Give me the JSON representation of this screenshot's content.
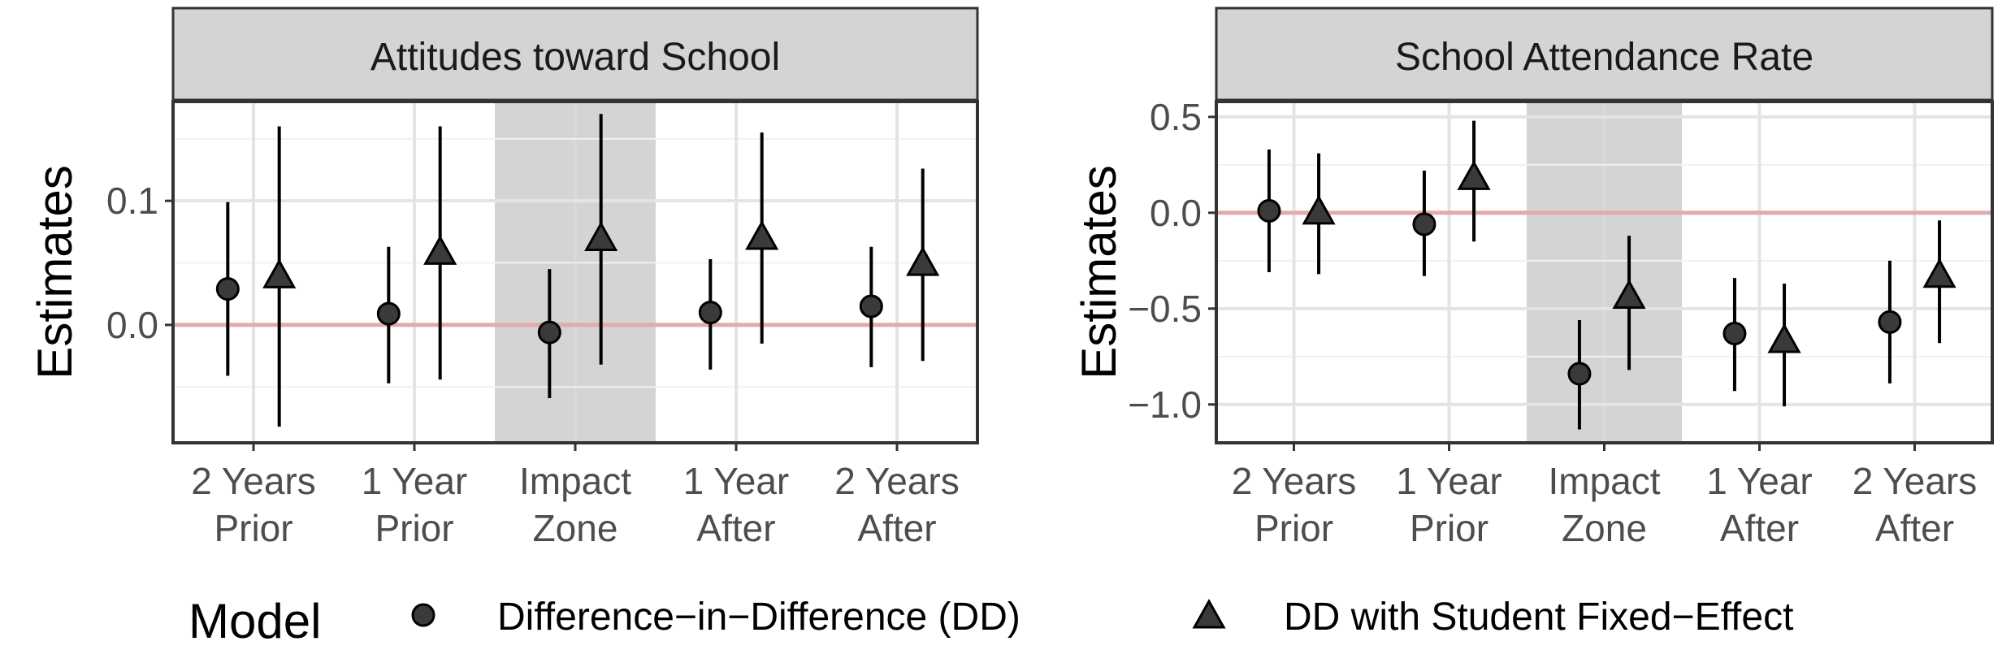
{
  "chart_data": [
    {
      "type": "scatter",
      "facet_title": "Attitudes toward School",
      "ylabel": "Estimates",
      "categories": [
        "2 Years\nPrior",
        "1 Year\nPrior",
        "Impact\nZone",
        "1 Year\nAfter",
        "2 Years\nAfter"
      ],
      "highlighted_category": "Impact\nZone",
      "ylim": [
        -0.095,
        0.18
      ],
      "yticks": [
        0.0,
        0.1
      ],
      "ytick_labels": [
        "0.0",
        "0.1"
      ],
      "reference_line": 0,
      "series": [
        {
          "name": "Difference−in−Difference (DD)",
          "marker": "circle",
          "values": [
            0.029,
            0.009,
            -0.006,
            0.01,
            0.015
          ],
          "lower": [
            -0.041,
            -0.047,
            -0.059,
            -0.036,
            -0.034
          ],
          "upper": [
            0.099,
            0.063,
            0.045,
            0.053,
            0.063
          ]
        },
        {
          "name": "DD with Student Fixed−Effect",
          "marker": "triangle",
          "values": [
            0.039,
            0.058,
            0.069,
            0.07,
            0.049
          ],
          "lower": [
            -0.082,
            -0.044,
            -0.032,
            -0.015,
            -0.029
          ],
          "upper": [
            0.16,
            0.16,
            0.17,
            0.155,
            0.126
          ]
        }
      ],
      "grid": true
    },
    {
      "type": "scatter",
      "facet_title": "School Attendance Rate",
      "ylabel": "Estimates",
      "categories": [
        "2 Years\nPrior",
        "1 Year\nPrior",
        "Impact\nZone",
        "1 Year\nAfter",
        "2 Years\nAfter"
      ],
      "highlighted_category": "Impact\nZone",
      "ylim": [
        -1.2,
        0.58
      ],
      "yticks": [
        -1.0,
        -0.5,
        0.0,
        0.5
      ],
      "ytick_labels": [
        "−1.0",
        "−0.5",
        "0.0",
        "0.5"
      ],
      "reference_line": 0,
      "series": [
        {
          "name": "Difference−in−Difference (DD)",
          "marker": "circle",
          "values": [
            0.01,
            -0.06,
            -0.84,
            -0.63,
            -0.57
          ],
          "lower": [
            -0.31,
            -0.33,
            -1.13,
            -0.93,
            -0.89
          ],
          "upper": [
            0.33,
            0.22,
            -0.56,
            -0.34,
            -0.25
          ]
        },
        {
          "name": "DD with Student Fixed−Effect",
          "marker": "triangle",
          "values": [
            0.0,
            0.18,
            -0.44,
            -0.67,
            -0.33
          ],
          "lower": [
            -0.32,
            -0.15,
            -0.82,
            -1.01,
            -0.68
          ],
          "upper": [
            0.31,
            0.48,
            -0.12,
            -0.37,
            -0.04
          ]
        }
      ],
      "grid": true
    }
  ],
  "legend": {
    "title": "Model",
    "position": "bottom",
    "items": [
      {
        "label": "Difference−in−Difference (DD)",
        "marker": "circle"
      },
      {
        "label": "DD with Student Fixed−Effect",
        "marker": "triangle"
      }
    ]
  },
  "colors": {
    "strip_bg": "#d4d4d4",
    "panel_border": "#333333",
    "grid_major": "#e4e4e4",
    "grid_minor": "#f1f1f1",
    "highlight_band": "#d4d4d4",
    "reference_line": "#e2aaaa",
    "marker_fill": "#3a3a3a",
    "marker_stroke": "#000000",
    "errorbar": "#000000"
  }
}
